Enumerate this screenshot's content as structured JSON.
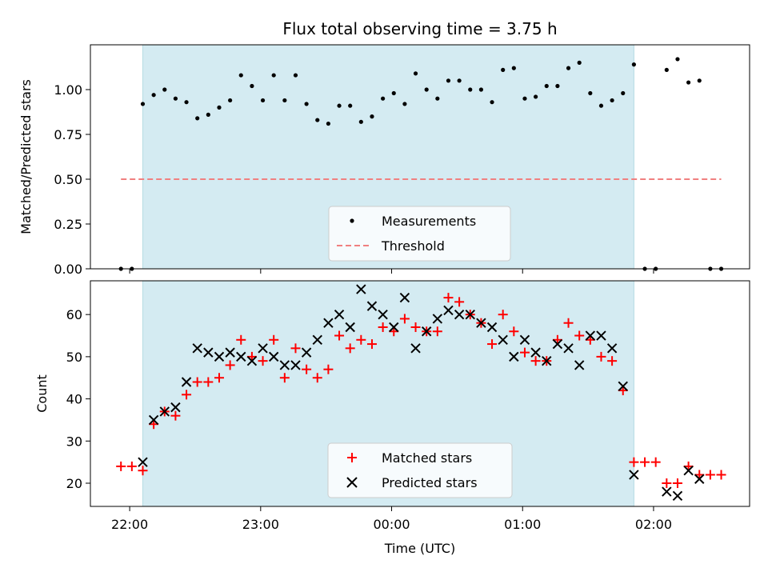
{
  "chart_data": {
    "type": "scatter",
    "title": "Flux total observing time = 3.75 h",
    "xlabel": "Time (UTC)",
    "x_ticks": [
      "22:00",
      "23:00",
      "00:00",
      "01:00",
      "02:00"
    ],
    "x_tick_minutes": [
      0,
      60,
      120,
      180,
      240
    ],
    "xlim_minutes": [
      -18,
      284
    ],
    "observing_window_minutes": [
      6,
      231
    ],
    "window_color": "#d4ebf2",
    "top_panel": {
      "ylabel": "Matched/Predicted stars",
      "ylim": [
        0,
        1.25
      ],
      "y_ticks": [
        0.0,
        0.25,
        0.5,
        0.75,
        1.0
      ],
      "y_tick_labels": [
        "0.00",
        "0.25",
        "0.50",
        "0.75",
        "1.00"
      ],
      "legend": {
        "placement": "lower-center",
        "measurements_label": "Measurements",
        "threshold_label": "Threshold"
      },
      "threshold": {
        "value": 0.5,
        "x_range_minutes": [
          -4,
          271
        ],
        "color": "#f08080"
      },
      "series": [
        {
          "name": "Measurements",
          "color": "#000000",
          "points": [
            [
              -4,
              0.0
            ],
            [
              1,
              0.0
            ],
            [
              6,
              0.92
            ],
            [
              11,
              0.97
            ],
            [
              16,
              1.0
            ],
            [
              21,
              0.95
            ],
            [
              26,
              0.93
            ],
            [
              31,
              0.84
            ],
            [
              36,
              0.86
            ],
            [
              41,
              0.9
            ],
            [
              46,
              0.94
            ],
            [
              51,
              1.08
            ],
            [
              56,
              1.02
            ],
            [
              61,
              0.94
            ],
            [
              66,
              1.08
            ],
            [
              71,
              0.94
            ],
            [
              76,
              1.08
            ],
            [
              81,
              0.92
            ],
            [
              86,
              0.83
            ],
            [
              91,
              0.81
            ],
            [
              96,
              0.91
            ],
            [
              101,
              0.91
            ],
            [
              106,
              0.82
            ],
            [
              111,
              0.85
            ],
            [
              116,
              0.95
            ],
            [
              121,
              0.98
            ],
            [
              126,
              0.92
            ],
            [
              131,
              1.09
            ],
            [
              136,
              1.0
            ],
            [
              141,
              0.95
            ],
            [
              146,
              1.05
            ],
            [
              151,
              1.05
            ],
            [
              156,
              1.0
            ],
            [
              161,
              1.0
            ],
            [
              166,
              0.93
            ],
            [
              171,
              1.11
            ],
            [
              176,
              1.12
            ],
            [
              181,
              0.95
            ],
            [
              186,
              0.96
            ],
            [
              191,
              1.02
            ],
            [
              196,
              1.02
            ],
            [
              201,
              1.12
            ],
            [
              206,
              1.15
            ],
            [
              211,
              0.98
            ],
            [
              216,
              0.91
            ],
            [
              221,
              0.94
            ],
            [
              226,
              0.98
            ],
            [
              231,
              1.14
            ],
            [
              236,
              0.0
            ],
            [
              241,
              0.0
            ],
            [
              246,
              1.11
            ],
            [
              251,
              1.17
            ],
            [
              256,
              1.04
            ],
            [
              261,
              1.05
            ],
            [
              266,
              0.0
            ],
            [
              271,
              0.0
            ]
          ]
        }
      ]
    },
    "bottom_panel": {
      "ylabel": "Count",
      "ylim": [
        14.5,
        68
      ],
      "y_ticks": [
        20,
        30,
        40,
        50,
        60
      ],
      "legend": {
        "placement": "lower-center"
      },
      "series": [
        {
          "name": "Matched stars",
          "marker": "plus",
          "color": "#ff0000",
          "points": [
            [
              -4,
              24
            ],
            [
              1,
              24
            ],
            [
              6,
              23
            ],
            [
              11,
              34
            ],
            [
              16,
              37
            ],
            [
              21,
              36
            ],
            [
              26,
              41
            ],
            [
              31,
              44
            ],
            [
              36,
              44
            ],
            [
              41,
              45
            ],
            [
              46,
              48
            ],
            [
              51,
              54
            ],
            [
              56,
              50
            ],
            [
              61,
              49
            ],
            [
              66,
              54
            ],
            [
              71,
              45
            ],
            [
              76,
              52
            ],
            [
              81,
              47
            ],
            [
              86,
              45
            ],
            [
              91,
              47
            ],
            [
              96,
              55
            ],
            [
              101,
              52
            ],
            [
              106,
              54
            ],
            [
              111,
              53
            ],
            [
              116,
              57
            ],
            [
              121,
              56
            ],
            [
              126,
              59
            ],
            [
              131,
              57
            ],
            [
              136,
              56
            ],
            [
              141,
              56
            ],
            [
              146,
              64
            ],
            [
              151,
              63
            ],
            [
              156,
              60
            ],
            [
              161,
              58
            ],
            [
              166,
              53
            ],
            [
              171,
              60
            ],
            [
              176,
              56
            ],
            [
              181,
              51
            ],
            [
              186,
              49
            ],
            [
              191,
              49
            ],
            [
              196,
              54
            ],
            [
              201,
              58
            ],
            [
              206,
              55
            ],
            [
              211,
              54
            ],
            [
              216,
              50
            ],
            [
              221,
              49
            ],
            [
              226,
              42
            ],
            [
              231,
              25
            ],
            [
              236,
              25
            ],
            [
              241,
              25
            ],
            [
              246,
              20
            ],
            [
              251,
              20
            ],
            [
              256,
              24
            ],
            [
              261,
              22
            ],
            [
              266,
              22
            ],
            [
              271,
              22
            ]
          ]
        },
        {
          "name": "Predicted stars",
          "marker": "x",
          "color": "#000000",
          "points": [
            [
              6,
              25
            ],
            [
              11,
              35
            ],
            [
              16,
              37
            ],
            [
              21,
              38
            ],
            [
              26,
              44
            ],
            [
              31,
              52
            ],
            [
              36,
              51
            ],
            [
              41,
              50
            ],
            [
              46,
              51
            ],
            [
              51,
              50
            ],
            [
              56,
              49
            ],
            [
              61,
              52
            ],
            [
              66,
              50
            ],
            [
              71,
              48
            ],
            [
              76,
              48
            ],
            [
              81,
              51
            ],
            [
              86,
              54
            ],
            [
              91,
              58
            ],
            [
              96,
              60
            ],
            [
              101,
              57
            ],
            [
              106,
              66
            ],
            [
              111,
              62
            ],
            [
              116,
              60
            ],
            [
              121,
              57
            ],
            [
              126,
              64
            ],
            [
              131,
              52
            ],
            [
              136,
              56
            ],
            [
              141,
              59
            ],
            [
              146,
              61
            ],
            [
              151,
              60
            ],
            [
              156,
              60
            ],
            [
              161,
              58
            ],
            [
              166,
              57
            ],
            [
              171,
              54
            ],
            [
              176,
              50
            ],
            [
              181,
              54
            ],
            [
              186,
              51
            ],
            [
              191,
              49
            ],
            [
              196,
              53
            ],
            [
              201,
              52
            ],
            [
              206,
              48
            ],
            [
              211,
              55
            ],
            [
              216,
              55
            ],
            [
              221,
              52
            ],
            [
              226,
              43
            ],
            [
              231,
              22
            ],
            [
              246,
              18
            ],
            [
              251,
              17
            ],
            [
              256,
              23
            ],
            [
              261,
              21
            ]
          ]
        }
      ]
    }
  }
}
